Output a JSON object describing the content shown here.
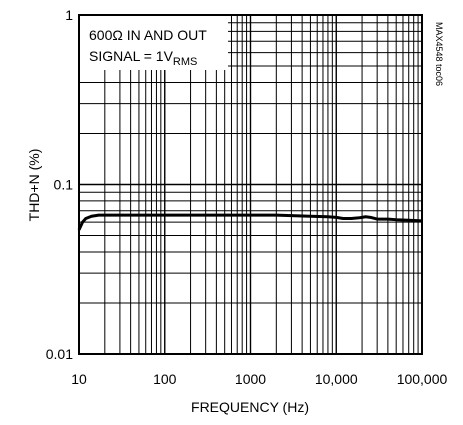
{
  "chart_data": {
    "type": "line",
    "xlabel": "FREQUENCY (Hz)",
    "ylabel": "THD+N (%)",
    "x_scale": "log",
    "y_scale": "log",
    "xlim": [
      10,
      100000
    ],
    "ylim": [
      0.01,
      1
    ],
    "x_tick_labels": [
      "10",
      "100",
      "1000",
      "10,000",
      "100,000"
    ],
    "x_tick_values": [
      10,
      100,
      1000,
      10000,
      100000
    ],
    "y_tick_labels": [
      "0.01",
      "0.1",
      "1"
    ],
    "y_tick_values": [
      0.01,
      0.1,
      1
    ],
    "grid": true,
    "annotations": {
      "line1": "600Ω IN AND OUT",
      "line2_prefix": "SIGNAL = 1V",
      "line2_sub": "RMS"
    },
    "figure_id": "MAX4548 toc06",
    "series": [
      {
        "x": [
          10,
          11,
          12,
          14,
          17,
          20,
          30,
          50,
          100,
          200,
          500,
          1000,
          2000,
          5000,
          8000,
          10000,
          12000,
          15000,
          18000,
          20000,
          22000,
          25000,
          30000,
          40000,
          50000,
          70000,
          100000
        ],
        "y": [
          0.054,
          0.06,
          0.063,
          0.065,
          0.066,
          0.066,
          0.066,
          0.066,
          0.066,
          0.066,
          0.066,
          0.066,
          0.066,
          0.065,
          0.0645,
          0.064,
          0.063,
          0.063,
          0.0635,
          0.064,
          0.0645,
          0.064,
          0.0625,
          0.0625,
          0.062,
          0.0615,
          0.061
        ]
      }
    ]
  }
}
